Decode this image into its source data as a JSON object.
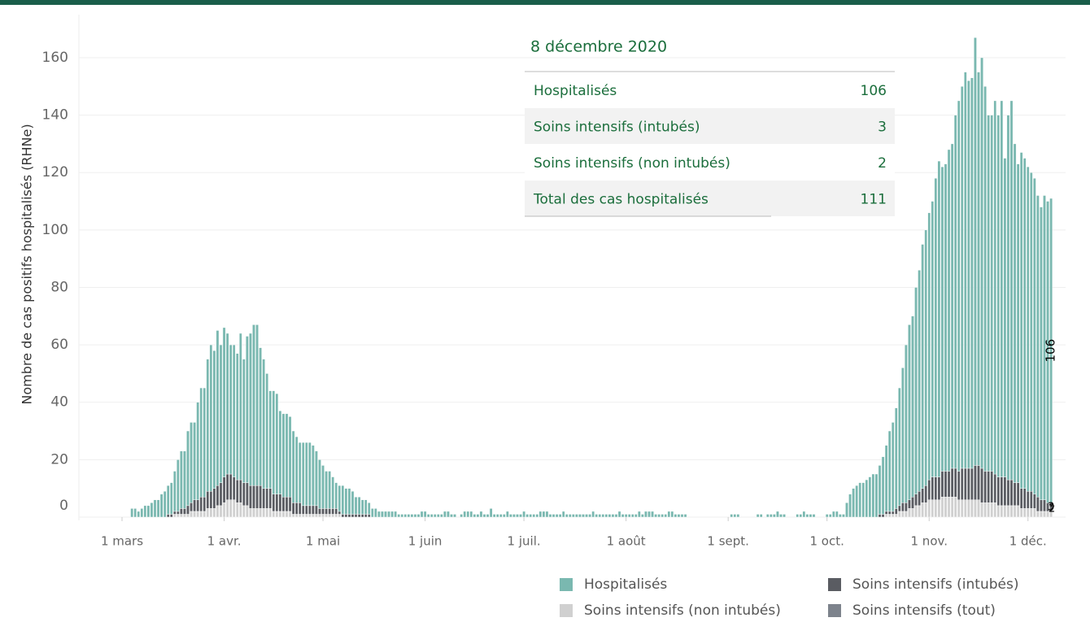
{
  "chart_data": {
    "type": "stacked_bar",
    "y_label": "Nombre de cas positifs hospitalisés (RHNe)",
    "x": [
      "2020-03-01",
      "2020-03-02",
      "2020-03-03",
      "2020-03-04",
      "2020-03-05",
      "2020-03-06",
      "2020-03-07",
      "2020-03-08",
      "2020-03-09",
      "2020-03-10",
      "2020-03-11",
      "2020-03-12",
      "2020-03-13",
      "2020-03-14",
      "2020-03-15",
      "2020-03-16",
      "2020-03-17",
      "2020-03-18",
      "2020-03-19",
      "2020-03-20",
      "2020-03-21",
      "2020-03-22",
      "2020-03-23",
      "2020-03-24",
      "2020-03-25",
      "2020-03-26",
      "2020-03-27",
      "2020-03-28",
      "2020-03-29",
      "2020-03-30",
      "2020-03-31",
      "2020-04-01",
      "2020-04-02",
      "2020-04-03",
      "2020-04-04",
      "2020-04-05",
      "2020-04-06",
      "2020-04-07",
      "2020-04-08",
      "2020-04-09",
      "2020-04-10",
      "2020-04-11",
      "2020-04-12",
      "2020-04-13",
      "2020-04-14",
      "2020-04-15",
      "2020-04-16",
      "2020-04-17",
      "2020-04-18",
      "2020-04-19",
      "2020-04-20",
      "2020-04-21",
      "2020-04-22",
      "2020-04-23",
      "2020-04-24",
      "2020-04-25",
      "2020-04-26",
      "2020-04-27",
      "2020-04-28",
      "2020-04-29",
      "2020-04-30",
      "2020-05-01",
      "2020-05-02",
      "2020-05-03",
      "2020-05-04",
      "2020-05-05",
      "2020-05-06",
      "2020-05-07",
      "2020-05-08",
      "2020-05-09",
      "2020-05-10",
      "2020-05-11",
      "2020-05-12",
      "2020-05-13",
      "2020-05-14",
      "2020-05-15",
      "2020-05-16",
      "2020-05-17",
      "2020-05-18",
      "2020-05-19",
      "2020-05-20",
      "2020-05-21",
      "2020-05-22",
      "2020-05-23",
      "2020-05-24",
      "2020-05-25",
      "2020-05-26",
      "2020-05-27",
      "2020-05-28",
      "2020-05-29",
      "2020-05-30",
      "2020-05-31",
      "2020-06-01",
      "2020-06-02",
      "2020-06-03",
      "2020-06-04",
      "2020-06-05",
      "2020-06-06",
      "2020-06-07",
      "2020-06-08",
      "2020-06-09",
      "2020-06-10",
      "2020-06-11",
      "2020-06-12",
      "2020-06-13",
      "2020-06-14",
      "2020-06-15",
      "2020-06-16",
      "2020-06-17",
      "2020-06-18",
      "2020-06-19",
      "2020-06-20",
      "2020-06-21",
      "2020-06-22",
      "2020-06-23",
      "2020-06-24",
      "2020-06-25",
      "2020-06-26",
      "2020-06-27",
      "2020-06-28",
      "2020-06-29",
      "2020-06-30",
      "2020-07-01",
      "2020-07-02",
      "2020-07-03",
      "2020-07-04",
      "2020-07-05",
      "2020-07-06",
      "2020-07-07",
      "2020-07-08",
      "2020-07-09",
      "2020-07-10",
      "2020-07-11",
      "2020-07-12",
      "2020-07-13",
      "2020-07-14",
      "2020-07-15",
      "2020-07-16",
      "2020-07-17",
      "2020-07-18",
      "2020-07-19",
      "2020-07-20",
      "2020-07-21",
      "2020-07-22",
      "2020-07-23",
      "2020-07-24",
      "2020-07-25",
      "2020-07-26",
      "2020-07-27",
      "2020-07-28",
      "2020-07-29",
      "2020-07-30",
      "2020-07-31",
      "2020-08-01",
      "2020-08-02",
      "2020-08-03",
      "2020-08-04",
      "2020-08-05",
      "2020-08-06",
      "2020-08-07",
      "2020-08-08",
      "2020-08-09",
      "2020-08-10",
      "2020-08-11",
      "2020-08-12",
      "2020-08-13",
      "2020-08-14",
      "2020-08-15",
      "2020-08-16",
      "2020-08-17",
      "2020-08-18",
      "2020-08-19",
      "2020-08-20",
      "2020-08-21",
      "2020-08-22",
      "2020-08-23",
      "2020-08-24",
      "2020-08-25",
      "2020-08-26",
      "2020-08-27",
      "2020-08-28",
      "2020-08-29",
      "2020-08-30",
      "2020-08-31",
      "2020-09-01",
      "2020-09-02",
      "2020-09-03",
      "2020-09-04",
      "2020-09-05",
      "2020-09-06",
      "2020-09-07",
      "2020-09-08",
      "2020-09-09",
      "2020-09-10",
      "2020-09-11",
      "2020-09-12",
      "2020-09-13",
      "2020-09-14",
      "2020-09-15",
      "2020-09-16",
      "2020-09-17",
      "2020-09-18",
      "2020-09-19",
      "2020-09-20",
      "2020-09-21",
      "2020-09-22",
      "2020-09-23",
      "2020-09-24",
      "2020-09-25",
      "2020-09-26",
      "2020-09-27",
      "2020-09-28",
      "2020-09-29",
      "2020-09-30",
      "2020-10-01",
      "2020-10-02",
      "2020-10-03",
      "2020-10-04",
      "2020-10-05",
      "2020-10-06",
      "2020-10-07",
      "2020-10-08",
      "2020-10-09",
      "2020-10-10",
      "2020-10-11",
      "2020-10-12",
      "2020-10-13",
      "2020-10-14",
      "2020-10-15",
      "2020-10-16",
      "2020-10-17",
      "2020-10-18",
      "2020-10-19",
      "2020-10-20",
      "2020-10-21",
      "2020-10-22",
      "2020-10-23",
      "2020-10-24",
      "2020-10-25",
      "2020-10-26",
      "2020-10-27",
      "2020-10-28",
      "2020-10-29",
      "2020-10-30",
      "2020-10-31",
      "2020-11-01",
      "2020-11-02",
      "2020-11-03",
      "2020-11-04",
      "2020-11-05",
      "2020-11-06",
      "2020-11-07",
      "2020-11-08",
      "2020-11-09",
      "2020-11-10",
      "2020-11-11",
      "2020-11-12",
      "2020-11-13",
      "2020-11-14",
      "2020-11-15",
      "2020-11-16",
      "2020-11-17",
      "2020-11-18",
      "2020-11-19",
      "2020-11-20",
      "2020-11-21",
      "2020-11-22",
      "2020-11-23",
      "2020-11-24",
      "2020-11-25",
      "2020-11-26",
      "2020-11-27",
      "2020-11-28",
      "2020-11-29",
      "2020-11-30",
      "2020-12-01",
      "2020-12-02",
      "2020-12-03",
      "2020-12-04",
      "2020-12-05",
      "2020-12-06",
      "2020-12-07",
      "2020-12-08"
    ],
    "series": [
      {
        "name": "Hospitalisés",
        "color": "#7ab8b0",
        "values": [
          0,
          0,
          0,
          3,
          3,
          2,
          3,
          4,
          4,
          5,
          6,
          6,
          8,
          9,
          10,
          11,
          14,
          18,
          20,
          20,
          26,
          28,
          27,
          34,
          38,
          38,
          46,
          51,
          48,
          54,
          48,
          52,
          49,
          45,
          46,
          44,
          51,
          43,
          51,
          53,
          56,
          56,
          48,
          45,
          40,
          34,
          36,
          35,
          29,
          29,
          29,
          28,
          25,
          23,
          21,
          22,
          22,
          22,
          21,
          19,
          17,
          15,
          13,
          13,
          11,
          9,
          9,
          10,
          9,
          9,
          8,
          6,
          6,
          5,
          5,
          4,
          3,
          3,
          2,
          2,
          2,
          2,
          2,
          2,
          1,
          1,
          1,
          1,
          1,
          1,
          1,
          2,
          2,
          1,
          1,
          1,
          1,
          1,
          2,
          2,
          1,
          1,
          0,
          1,
          2,
          2,
          2,
          1,
          1,
          2,
          1,
          1,
          3,
          1,
          1,
          1,
          1,
          2,
          1,
          1,
          1,
          1,
          2,
          1,
          1,
          1,
          1,
          2,
          2,
          2,
          1,
          1,
          1,
          1,
          2,
          1,
          1,
          1,
          1,
          1,
          1,
          1,
          1,
          2,
          1,
          1,
          1,
          1,
          1,
          1,
          1,
          2,
          1,
          1,
          1,
          1,
          1,
          2,
          1,
          2,
          2,
          2,
          1,
          1,
          1,
          1,
          2,
          2,
          1,
          1,
          1,
          1,
          0,
          0,
          0,
          0,
          0,
          0,
          0,
          0,
          0,
          0,
          0,
          0,
          0,
          1,
          1,
          1,
          0,
          0,
          0,
          0,
          0,
          1,
          1,
          0,
          1,
          1,
          1,
          2,
          1,
          1,
          0,
          0,
          0,
          1,
          1,
          2,
          1,
          1,
          1,
          0,
          0,
          0,
          1,
          1,
          2,
          2,
          1,
          1,
          5,
          8,
          10,
          11,
          12,
          12,
          13,
          14,
          15,
          15,
          17,
          20,
          23,
          28,
          31,
          35,
          41,
          47,
          55,
          61,
          63,
          72,
          77,
          85,
          89,
          93,
          96,
          104,
          110,
          106,
          107,
          112,
          113,
          123,
          129,
          133,
          138,
          135,
          136,
          149,
          137,
          143,
          134,
          124,
          124,
          130,
          126,
          131,
          111,
          127,
          132,
          118,
          111,
          117,
          115,
          113,
          111,
          110,
          105,
          102,
          106,
          105,
          106
        ]
      },
      {
        "name": "Soins intensifs (intubés)",
        "color": "#5a5c62",
        "values": [
          0,
          0,
          0,
          0,
          0,
          0,
          0,
          0,
          0,
          0,
          0,
          0,
          0,
          0,
          1,
          1,
          1,
          1,
          2,
          2,
          3,
          3,
          4,
          4,
          5,
          5,
          6,
          6,
          7,
          7,
          8,
          9,
          9,
          9,
          8,
          8,
          8,
          8,
          8,
          8,
          8,
          8,
          8,
          7,
          7,
          7,
          6,
          6,
          6,
          5,
          5,
          5,
          4,
          4,
          4,
          3,
          3,
          3,
          3,
          3,
          2,
          2,
          2,
          2,
          2,
          2,
          1,
          1,
          1,
          1,
          1,
          1,
          1,
          1,
          1,
          1,
          0,
          0,
          0,
          0,
          0,
          0,
          0,
          0,
          0,
          0,
          0,
          0,
          0,
          0,
          0,
          0,
          0,
          0,
          0,
          0,
          0,
          0,
          0,
          0,
          0,
          0,
          0,
          0,
          0,
          0,
          0,
          0,
          0,
          0,
          0,
          0,
          0,
          0,
          0,
          0,
          0,
          0,
          0,
          0,
          0,
          0,
          0,
          0,
          0,
          0,
          0,
          0,
          0,
          0,
          0,
          0,
          0,
          0,
          0,
          0,
          0,
          0,
          0,
          0,
          0,
          0,
          0,
          0,
          0,
          0,
          0,
          0,
          0,
          0,
          0,
          0,
          0,
          0,
          0,
          0,
          0,
          0,
          0,
          0,
          0,
          0,
          0,
          0,
          0,
          0,
          0,
          0,
          0,
          0,
          0,
          0,
          0,
          0,
          0,
          0,
          0,
          0,
          0,
          0,
          0,
          0,
          0,
          0,
          0,
          0,
          0,
          0,
          0,
          0,
          0,
          0,
          0,
          0,
          0,
          0,
          0,
          0,
          0,
          0,
          0,
          0,
          0,
          0,
          0,
          0,
          0,
          0,
          0,
          0,
          0,
          0,
          0,
          0,
          0,
          0,
          0,
          0,
          0,
          0,
          0,
          0,
          0,
          0,
          0,
          0,
          0,
          0,
          0,
          0,
          1,
          1,
          1,
          1,
          1,
          2,
          2,
          3,
          3,
          3,
          4,
          4,
          5,
          5,
          6,
          7,
          8,
          8,
          8,
          9,
          9,
          9,
          10,
          10,
          10,
          11,
          11,
          11,
          11,
          12,
          12,
          12,
          11,
          11,
          11,
          10,
          10,
          10,
          10,
          9,
          9,
          8,
          8,
          7,
          7,
          6,
          6,
          5,
          5,
          4,
          4,
          3,
          3
        ]
      },
      {
        "name": "Soins intensifs (non intubés)",
        "color": "#d0d0d0",
        "values": [
          0,
          0,
          0,
          0,
          0,
          0,
          0,
          0,
          0,
          0,
          0,
          0,
          0,
          0,
          0,
          0,
          1,
          1,
          1,
          1,
          1,
          2,
          2,
          2,
          2,
          2,
          3,
          3,
          3,
          4,
          4,
          5,
          6,
          6,
          6,
          5,
          5,
          4,
          4,
          3,
          3,
          3,
          3,
          3,
          3,
          3,
          2,
          2,
          2,
          2,
          2,
          2,
          1,
          1,
          1,
          1,
          1,
          1,
          1,
          1,
          1,
          1,
          1,
          1,
          1,
          1,
          1,
          0,
          0,
          0,
          0,
          0,
          0,
          0,
          0,
          0,
          0,
          0,
          0,
          0,
          0,
          0,
          0,
          0,
          0,
          0,
          0,
          0,
          0,
          0,
          0,
          0,
          0,
          0,
          0,
          0,
          0,
          0,
          0,
          0,
          0,
          0,
          0,
          0,
          0,
          0,
          0,
          0,
          0,
          0,
          0,
          0,
          0,
          0,
          0,
          0,
          0,
          0,
          0,
          0,
          0,
          0,
          0,
          0,
          0,
          0,
          0,
          0,
          0,
          0,
          0,
          0,
          0,
          0,
          0,
          0,
          0,
          0,
          0,
          0,
          0,
          0,
          0,
          0,
          0,
          0,
          0,
          0,
          0,
          0,
          0,
          0,
          0,
          0,
          0,
          0,
          0,
          0,
          0,
          0,
          0,
          0,
          0,
          0,
          0,
          0,
          0,
          0,
          0,
          0,
          0,
          0,
          0,
          0,
          0,
          0,
          0,
          0,
          0,
          0,
          0,
          0,
          0,
          0,
          0,
          0,
          0,
          0,
          0,
          0,
          0,
          0,
          0,
          0,
          0,
          0,
          0,
          0,
          0,
          0,
          0,
          0,
          0,
          0,
          0,
          0,
          0,
          0,
          0,
          0,
          0,
          0,
          0,
          0,
          0,
          0,
          0,
          0,
          0,
          0,
          0,
          0,
          0,
          0,
          0,
          0,
          0,
          0,
          0,
          0,
          0,
          0,
          1,
          1,
          1,
          1,
          2,
          2,
          2,
          3,
          3,
          4,
          4,
          5,
          5,
          6,
          6,
          6,
          6,
          7,
          7,
          7,
          7,
          7,
          6,
          6,
          6,
          6,
          6,
          6,
          6,
          5,
          5,
          5,
          5,
          5,
          4,
          4,
          4,
          4,
          4,
          4,
          4,
          3,
          3,
          3,
          3,
          3,
          2,
          2,
          2,
          2,
          2
        ]
      },
      {
        "name": "Soins intensifs (tout)",
        "color": "#7d838c"
      }
    ],
    "ylim": [
      0,
      175
    ],
    "yticks": [
      0,
      20,
      40,
      60,
      80,
      100,
      120,
      140,
      160
    ],
    "grid": true,
    "xticks": [
      {
        "value": "2020-03-01",
        "label": "1 mars"
      },
      {
        "value": "2020-04-01",
        "label": "1 avr."
      },
      {
        "value": "2020-05-01",
        "label": "1 mai"
      },
      {
        "value": "2020-06-01",
        "label": "1 juin"
      },
      {
        "value": "2020-07-01",
        "label": "1 juil."
      },
      {
        "value": "2020-08-01",
        "label": "1 août"
      },
      {
        "value": "2020-09-01",
        "label": "1 sept."
      },
      {
        "value": "2020-10-01",
        "label": "1 oct."
      },
      {
        "value": "2020-11-01",
        "label": "1 nov."
      },
      {
        "value": "2020-12-01",
        "label": "1 déc."
      }
    ],
    "tooltip": {
      "title": "8 décembre 2020",
      "rows": [
        {
          "label": "Hospitalisés",
          "value": 106
        },
        {
          "label": "Soins intensifs (intubés)",
          "value": 3
        },
        {
          "label": "Soins intensifs (non intubés)",
          "value": 2
        },
        {
          "label": "Total des cas hospitalisés",
          "value": 111
        }
      ]
    }
  }
}
